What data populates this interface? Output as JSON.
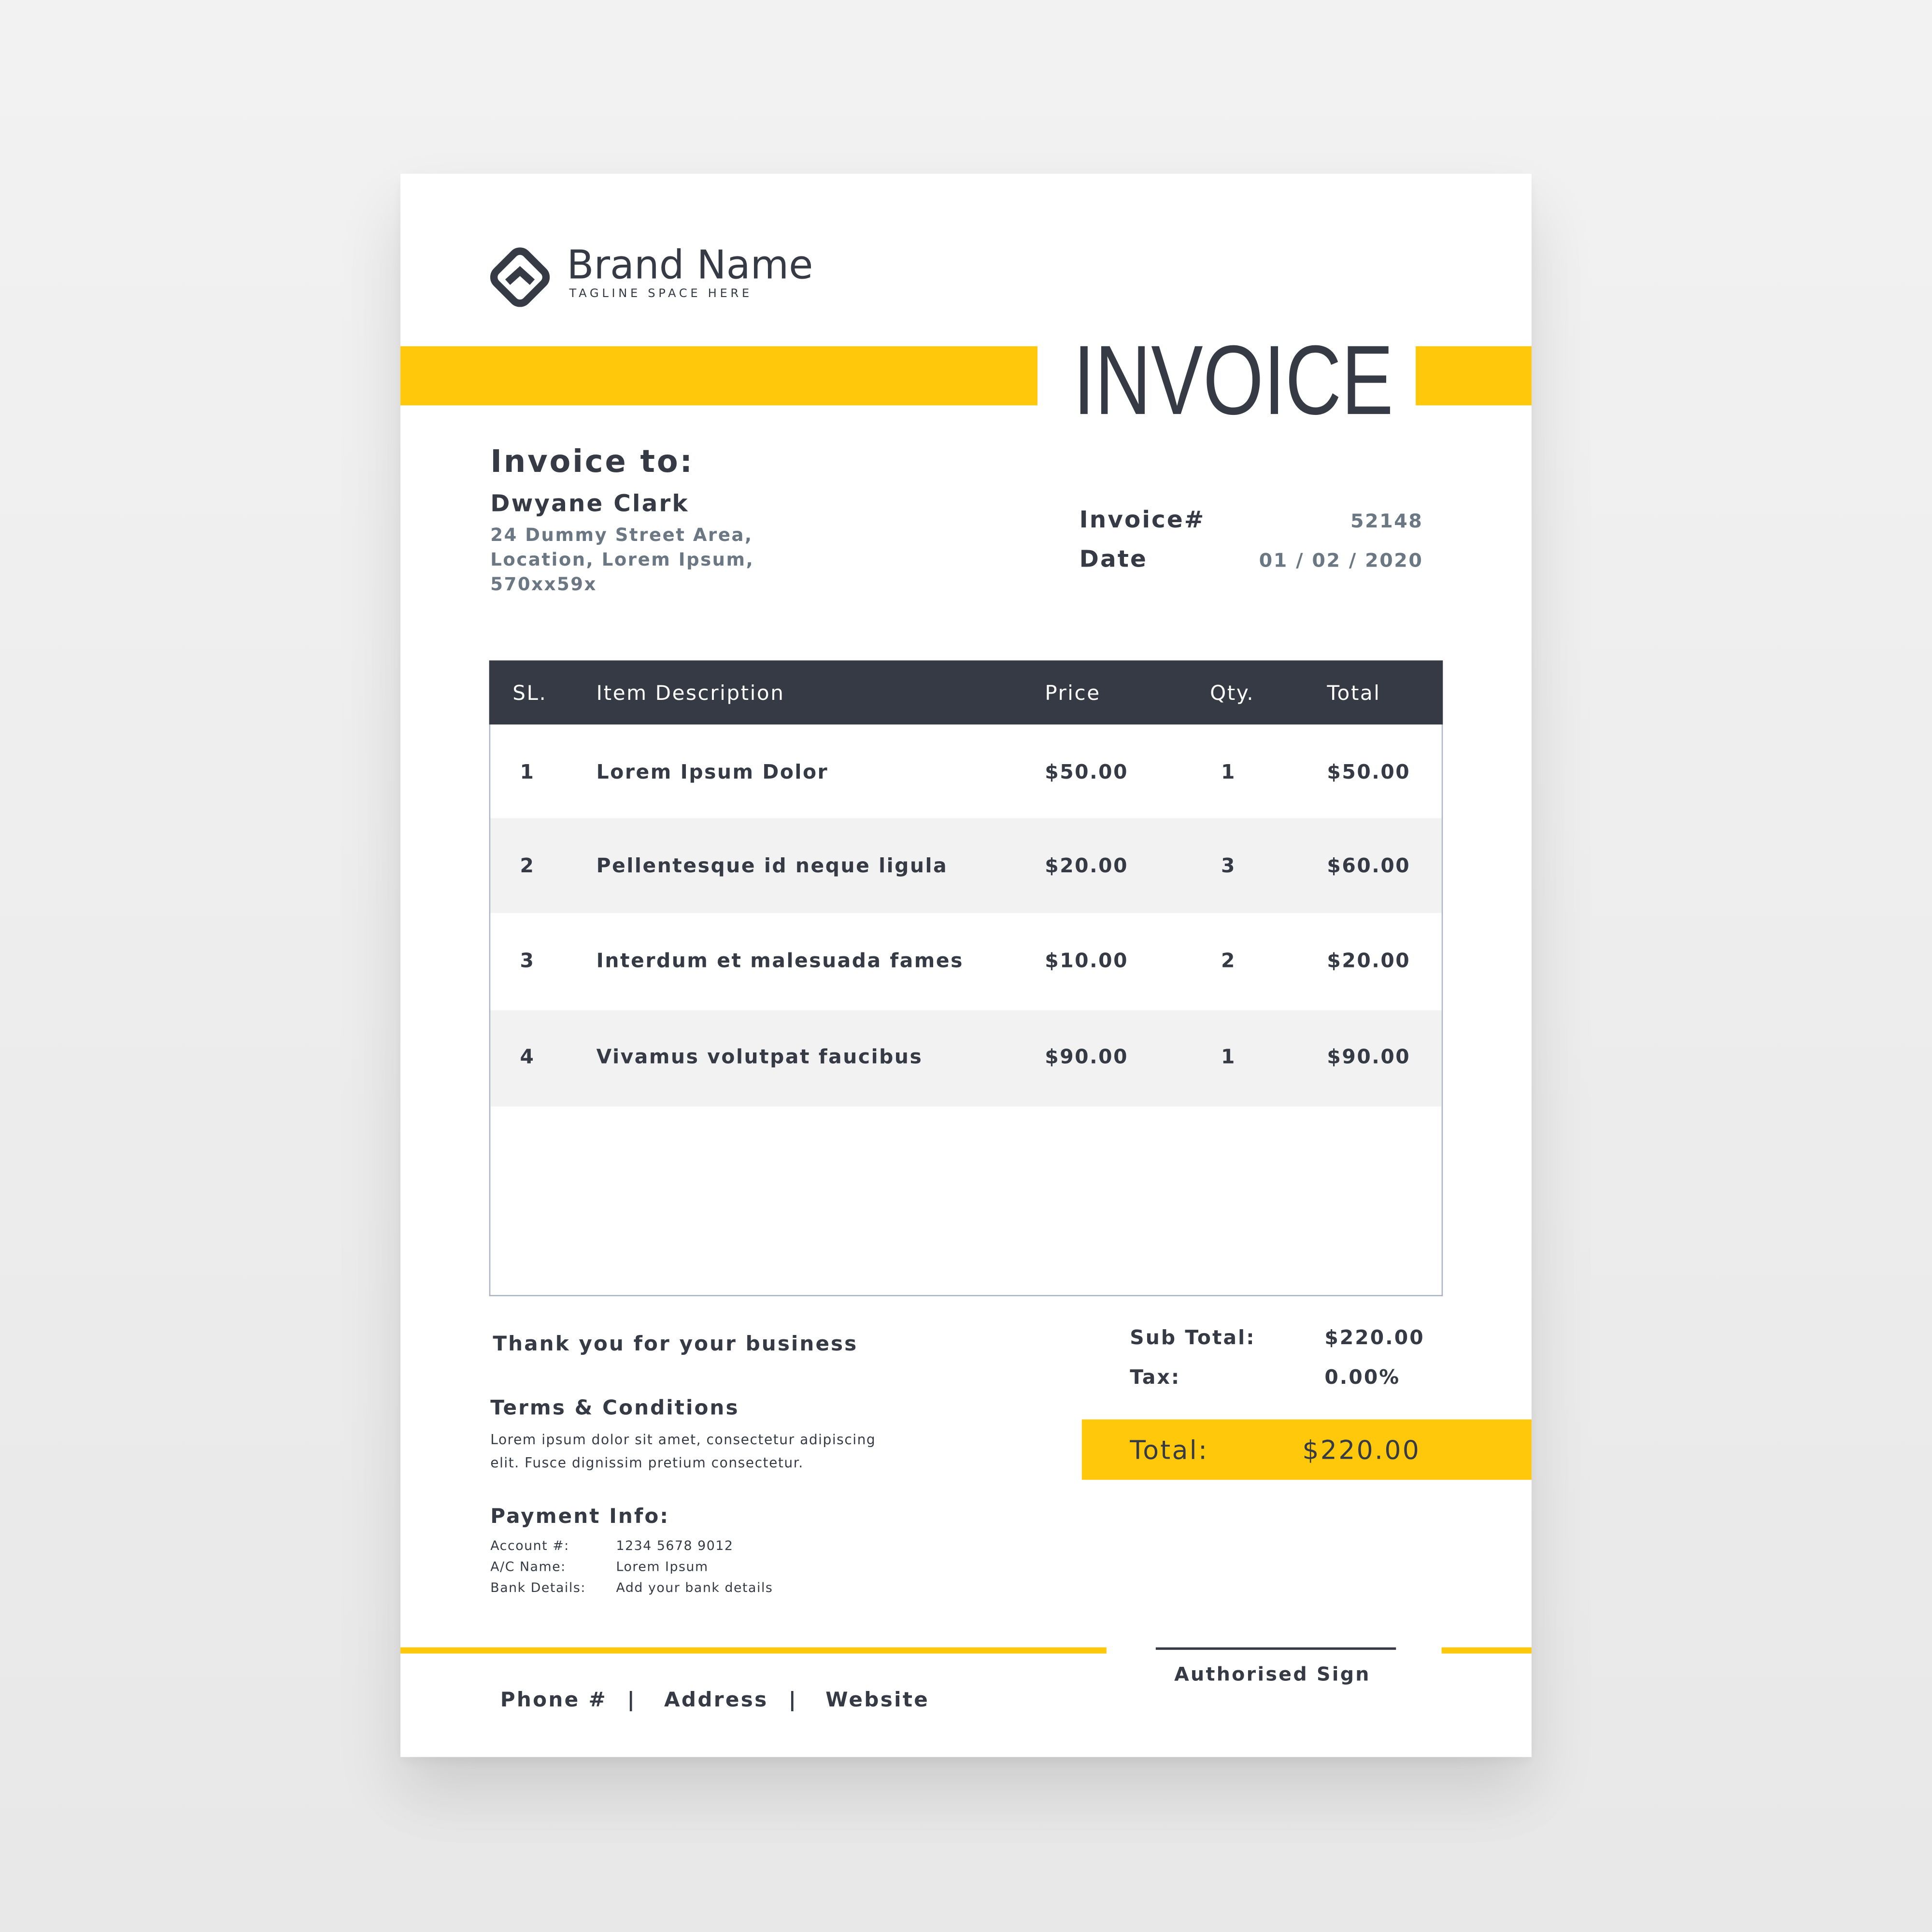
{
  "brand": {
    "name": "Brand Name",
    "tagline": "TAGLINE SPACE HERE"
  },
  "title": "INVOICE",
  "bill_to": {
    "label": "Invoice to:",
    "name": "Dwyane Clark",
    "address": [
      "24 Dummy Street Area,",
      "Location, Lorem Ipsum,",
      "570xx59x"
    ]
  },
  "meta": {
    "invoice_label": "Invoice#",
    "invoice_value": "52148",
    "date_label": "Date",
    "date_value": "01 / 02 / 2020"
  },
  "table": {
    "headers": [
      "SL.",
      "Item Description",
      "Price",
      "Qty.",
      "Total"
    ],
    "rows": [
      [
        "1",
        "Lorem Ipsum Dolor",
        "$50.00",
        "1",
        "$50.00"
      ],
      [
        "2",
        "Pellentesque id neque ligula",
        "$20.00",
        "3",
        "$60.00"
      ],
      [
        "3",
        "Interdum et malesuada fames",
        "$10.00",
        "2",
        "$20.00"
      ],
      [
        "4",
        "Vivamus volutpat faucibus",
        "$90.00",
        "1",
        "$90.00"
      ]
    ]
  },
  "thanks": "Thank you for your business",
  "terms": {
    "title": "Terms & Conditions",
    "lines": [
      "Lorem ipsum dolor sit amet, consectetur adipiscing",
      "elit. Fusce dignissim pretium consectetur."
    ]
  },
  "payment": {
    "title": "Payment Info:",
    "rows": [
      {
        "label": "Account #:",
        "value": "1234 5678 9012"
      },
      {
        "label": "A/C Name:",
        "value": "Lorem Ipsum"
      },
      {
        "label": "Bank Details:",
        "value": "Add your bank details"
      }
    ]
  },
  "summary": {
    "subtotal_label": "Sub Total:",
    "subtotal_value": "$220.00",
    "tax_label": "Tax:",
    "tax_value": "0.00%",
    "total_label": "Total:",
    "total_value": "$220.00"
  },
  "signature": "Authorised Sign",
  "footer": {
    "phone": "Phone #",
    "sep": "|",
    "address": "Address",
    "website": "Website"
  },
  "colors": {
    "accent": "#ffc80a",
    "dark": "#363a45",
    "muted": "#6b7883"
  }
}
